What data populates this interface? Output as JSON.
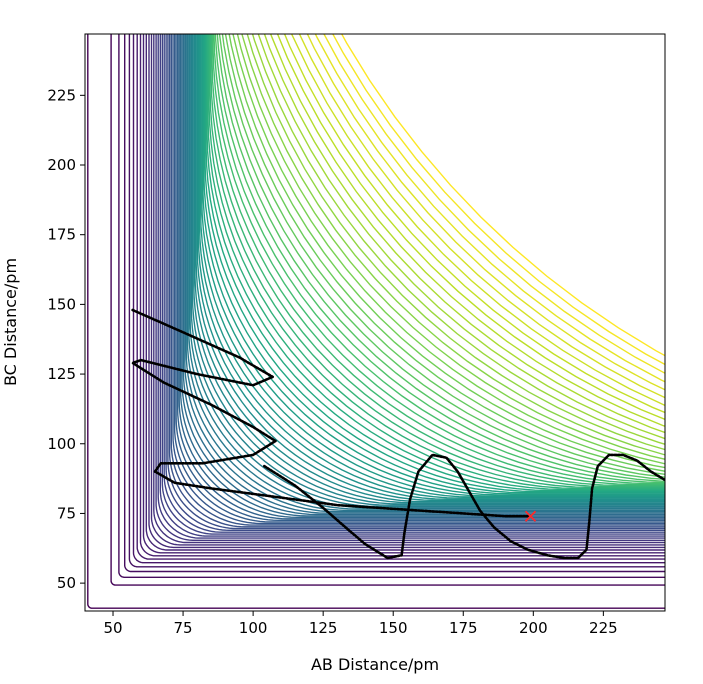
{
  "chart_data": {
    "type": "contour",
    "title": "",
    "xlabel": "AB Distance/pm",
    "ylabel": "BC Distance/pm",
    "xlim": [
      40,
      247
    ],
    "ylim": [
      40,
      247
    ],
    "xticks": [
      50,
      75,
      100,
      125,
      150,
      175,
      200,
      225
    ],
    "yticks": [
      50,
      75,
      100,
      125,
      150,
      175,
      200,
      225
    ],
    "grid": false,
    "legend": "none",
    "colormap": "viridis",
    "contour_levels": 80,
    "colors": {
      "trajectory": "#000000",
      "final_marker": "#ff2a2a",
      "frame": "#000000"
    },
    "trajectory": {
      "start": [
        57,
        148
      ],
      "end": [
        199,
        74
      ],
      "x": [
        57,
        75,
        95,
        107,
        100,
        80,
        60,
        57,
        68,
        85,
        100,
        108,
        100,
        82,
        67,
        65,
        72,
        85,
        100,
        115,
        130,
        145,
        160,
        175,
        190,
        199
      ],
      "y": [
        148,
        140,
        131,
        124,
        121,
        125,
        130,
        129,
        122,
        114,
        106,
        101,
        96,
        93,
        93,
        90,
        86,
        84,
        82,
        80,
        78,
        77,
        76,
        75,
        74,
        74
      ]
    },
    "trajectory2": {
      "x": [
        104,
        115,
        125,
        133,
        140,
        148,
        153,
        154,
        156,
        159,
        164,
        169,
        173,
        177,
        181,
        186,
        192,
        198,
        205,
        211,
        216,
        219,
        220,
        221,
        223,
        227,
        232,
        237,
        242,
        247
      ],
      "y": [
        92,
        85,
        77,
        70,
        64,
        59,
        60,
        68,
        80,
        90,
        96,
        95,
        90,
        83,
        76,
        70,
        65,
        62,
        60,
        59,
        59,
        62,
        72,
        84,
        92,
        96,
        96,
        94,
        90,
        87
      ]
    },
    "final_marker": {
      "x": 199,
      "y": 74,
      "symbol": "x"
    }
  }
}
